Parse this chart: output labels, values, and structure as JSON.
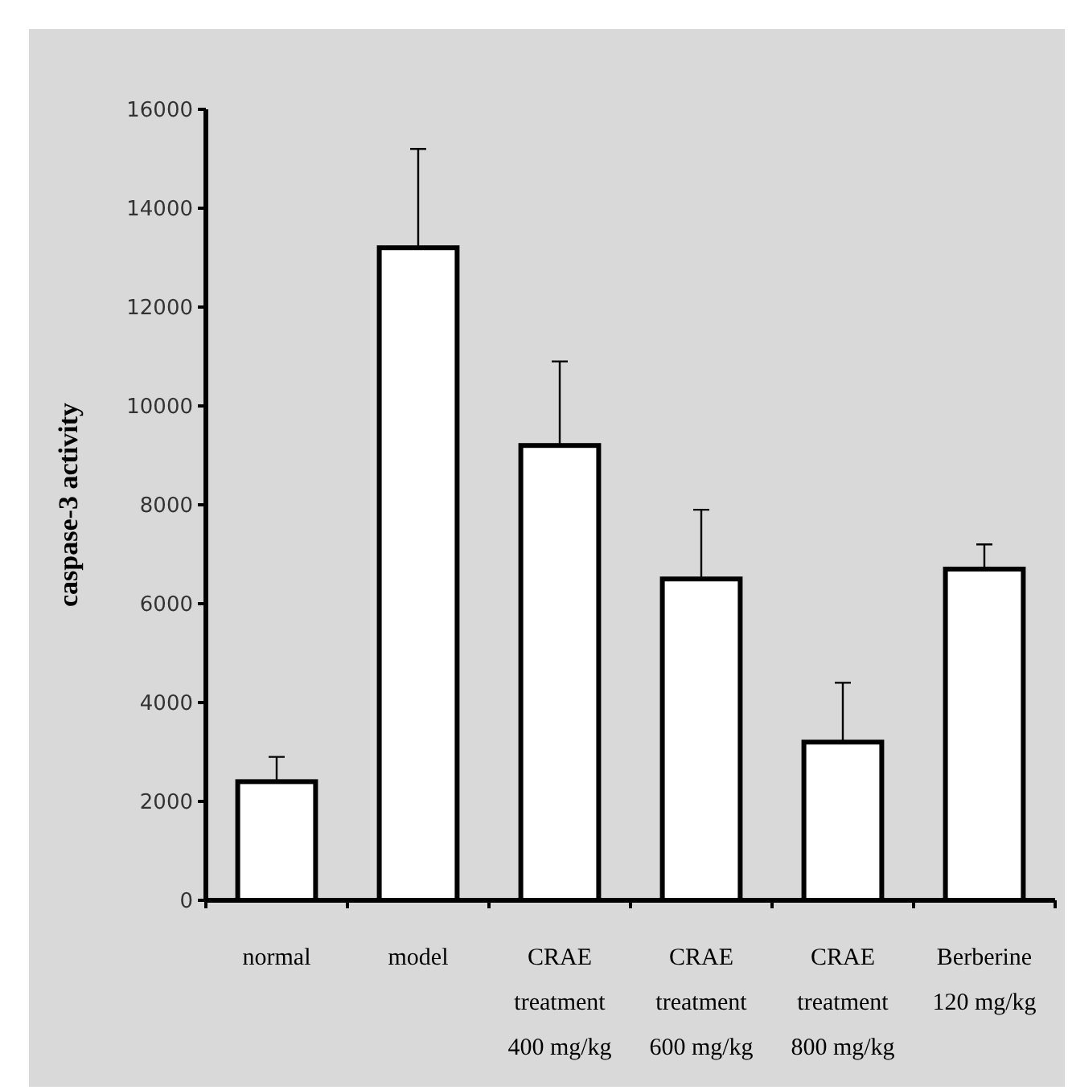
{
  "chart_data": {
    "type": "bar",
    "ylabel": "caspase-3 activity",
    "categories": [
      "normal",
      "model",
      "CRAE\ntreatment\n400 mg/kg",
      "CRAE\ntreatment\n600 mg/kg",
      "CRAE\ntreatment\n800 mg/kg",
      "Berberine\n120 mg/kg"
    ],
    "values": [
      2400,
      13200,
      9200,
      6500,
      3200,
      6700
    ],
    "errors": [
      [
        2400,
        2900
      ],
      [
        13200,
        15200
      ],
      [
        9200,
        10900
      ],
      [
        6500,
        7900
      ],
      [
        3200,
        4400
      ],
      [
        6700,
        7200
      ]
    ],
    "color": "#ffffff",
    "ylim": [
      0,
      16000
    ],
    "yticks": [
      0,
      2000,
      4000,
      6000,
      8000,
      10000,
      12000,
      14000,
      16000
    ],
    "grid": false
  }
}
